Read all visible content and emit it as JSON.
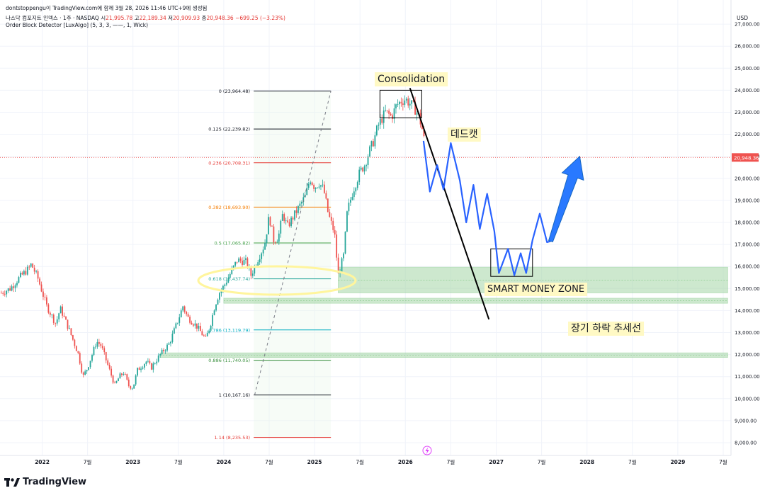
{
  "header": {
    "title": "dontstoppengu이 TradingView.com에 함께 3월 28, 2026 11:46 UTC+9에 생성됨",
    "symbol": "나스닥 컴포지트 인덱스 · 1주 · NASDAQ",
    "open_label": "시",
    "open": "21,995.78",
    "high_label": "고",
    "high": "22,189.34",
    "low_label": "저",
    "low": "20,909.93",
    "close_label": "종",
    "close": "20,948.36",
    "change": "−699.25 (−3.23%)",
    "indicator": "Order Block Detector [LuxAlgo] (5, 3, 3, ——, 1, Wick)"
  },
  "currency": "USD",
  "current_price": "20,948.36",
  "brand": "TradingView",
  "annotations": {
    "consolidation": "Consolidation",
    "dead_cat": "데드캣",
    "smart_money": "SMART MONEY ZONE",
    "trendline": "장기 하락 추세선"
  },
  "chart_data": {
    "type": "candlestick",
    "title": "",
    "y_axis": {
      "min": 7800,
      "max": 27200,
      "ticks": [
        8000,
        9000,
        10000,
        11000,
        12000,
        13000,
        14000,
        15000,
        16000,
        17000,
        18000,
        19000,
        20000,
        21000,
        22000,
        23000,
        24000,
        25000,
        26000,
        27000
      ],
      "tick_labels": [
        "8,000.00",
        "9,000.00",
        "10,000.00",
        "11,000.00",
        "12,000.00",
        "13,000.00",
        "14,000.00",
        "15,000.00",
        "16,000.00",
        "17,000.00",
        "18,000.00",
        "19,000.00",
        "20,000.00",
        "21,000.00",
        "22,000.00",
        "23,000.00",
        "24,000.00",
        "25,000.00",
        "26,000.00",
        "27,000.00"
      ]
    },
    "x_axis": {
      "min": 2021.55,
      "max": 2029.55,
      "ticks": [
        {
          "t": 2022.0,
          "label": "2022",
          "bold": true
        },
        {
          "t": 2022.5,
          "label": "7월",
          "bold": false
        },
        {
          "t": 2023.0,
          "label": "2023",
          "bold": true
        },
        {
          "t": 2023.5,
          "label": "7월",
          "bold": false
        },
        {
          "t": 2024.0,
          "label": "2024",
          "bold": true
        },
        {
          "t": 2024.5,
          "label": "7월",
          "bold": false
        },
        {
          "t": 2025.0,
          "label": "2025",
          "bold": true
        },
        {
          "t": 2025.5,
          "label": "7월",
          "bold": false
        },
        {
          "t": 2026.0,
          "label": "2026",
          "bold": true
        },
        {
          "t": 2026.5,
          "label": "7월",
          "bold": false
        },
        {
          "t": 2027.0,
          "label": "2027",
          "bold": true
        },
        {
          "t": 2027.5,
          "label": "7월",
          "bold": false
        },
        {
          "t": 2028.0,
          "label": "2028",
          "bold": true
        },
        {
          "t": 2028.5,
          "label": "7월",
          "bold": false
        },
        {
          "t": 2029.0,
          "label": "2029",
          "bold": true
        },
        {
          "t": 2029.5,
          "label": "7월",
          "bold": false
        }
      ]
    },
    "price_path": [
      [
        2021.55,
        14800
      ],
      [
        2021.65,
        15000
      ],
      [
        2021.75,
        15500
      ],
      [
        2021.85,
        15900
      ],
      [
        2021.88,
        16100
      ],
      [
        2021.95,
        15500
      ],
      [
        2022.05,
        14200
      ],
      [
        2022.15,
        13400
      ],
      [
        2022.2,
        14100
      ],
      [
        2022.3,
        13100
      ],
      [
        2022.4,
        12000
      ],
      [
        2022.45,
        11000
      ],
      [
        2022.5,
        11400
      ],
      [
        2022.6,
        12600
      ],
      [
        2022.65,
        12400
      ],
      [
        2022.7,
        11800
      ],
      [
        2022.75,
        11200
      ],
      [
        2022.8,
        10600
      ],
      [
        2022.85,
        11000
      ],
      [
        2022.9,
        11200
      ],
      [
        2022.95,
        10600
      ],
      [
        2023.0,
        10500
      ],
      [
        2023.05,
        11300
      ],
      [
        2023.1,
        11500
      ],
      [
        2023.15,
        11700
      ],
      [
        2023.2,
        11400
      ],
      [
        2023.3,
        12000
      ],
      [
        2023.4,
        12500
      ],
      [
        2023.5,
        13600
      ],
      [
        2023.55,
        14200
      ],
      [
        2023.6,
        13700
      ],
      [
        2023.7,
        13300
      ],
      [
        2023.8,
        12700
      ],
      [
        2023.85,
        13300
      ],
      [
        2023.9,
        14200
      ],
      [
        2023.95,
        14800
      ],
      [
        2024.0,
        15100
      ],
      [
        2024.1,
        15900
      ],
      [
        2024.15,
        16300
      ],
      [
        2024.25,
        16200
      ],
      [
        2024.3,
        15600
      ],
      [
        2024.35,
        16100
      ],
      [
        2024.45,
        17000
      ],
      [
        2024.5,
        18300
      ],
      [
        2024.55,
        17200
      ],
      [
        2024.6,
        17300
      ],
      [
        2024.65,
        18400
      ],
      [
        2024.7,
        17800
      ],
      [
        2024.8,
        18500
      ],
      [
        2024.9,
        19200
      ],
      [
        2024.95,
        20000
      ],
      [
        2025.0,
        19600
      ],
      [
        2025.05,
        19800
      ],
      [
        2025.1,
        19500
      ],
      [
        2025.15,
        18400
      ],
      [
        2025.22,
        17500
      ],
      [
        2025.26,
        15600
      ],
      [
        2025.32,
        16500
      ],
      [
        2025.36,
        18500
      ],
      [
        2025.42,
        19400
      ],
      [
        2025.5,
        20300
      ],
      [
        2025.55,
        20600
      ],
      [
        2025.6,
        21200
      ],
      [
        2025.65,
        21700
      ],
      [
        2025.7,
        22400
      ],
      [
        2025.78,
        23000
      ],
      [
        2025.85,
        22800
      ],
      [
        2025.9,
        23300
      ],
      [
        2025.95,
        23500
      ],
      [
        2026.0,
        23600
      ],
      [
        2026.05,
        23400
      ],
      [
        2026.1,
        23200
      ],
      [
        2026.15,
        22800
      ],
      [
        2026.2,
        21995.78
      ],
      [
        2026.22,
        20948.36
      ]
    ],
    "fibonacci": [
      {
        "level": "0",
        "price": 23964.48,
        "label": "0 (23,964.48)",
        "color": "#131722"
      },
      {
        "level": "0.125",
        "price": 22239.82,
        "label": "0.125 (22,239.82)",
        "color": "#131722"
      },
      {
        "level": "0.236",
        "price": 20708.31,
        "label": "0.236 (20,708.31)",
        "color": "#e53935"
      },
      {
        "level": "0.382",
        "price": 18693.9,
        "label": "0.382 (18,693.90)",
        "color": "#f57c00"
      },
      {
        "level": "0.5",
        "price": 17065.82,
        "label": "0.5 (17,065.82)",
        "color": "#43a047"
      },
      {
        "level": "0.618",
        "price": 15437.74,
        "label": "0.618 (15,437.74)",
        "color": "#26a69a"
      },
      {
        "level": "0.786",
        "price": 13119.79,
        "label": "0.786 (13,119.79)",
        "color": "#00acc1"
      },
      {
        "level": "0.886",
        "price": 11740.05,
        "label": "0.886 (11,740.05)",
        "color": "#388e3c"
      },
      {
        "level": "1",
        "price": 10167.16,
        "label": "1 (10,167.16)",
        "color": "#131722"
      },
      {
        "level": "1.14",
        "price": 8235.53,
        "label": "1.14 (8,235.53)",
        "color": "#e53935"
      }
    ],
    "fib_range": {
      "t_start": 2024.33,
      "t_end": 2025.18,
      "label_t": 2024.29
    },
    "order_blocks": [
      {
        "t_start": 2025.26,
        "t_end": 2029.55,
        "top": 15970,
        "bottom": 14800
      },
      {
        "t_start": 2024.0,
        "t_end": 2029.55,
        "top": 14560,
        "bottom": 14330
      },
      {
        "t_start": 2023.3,
        "t_end": 2029.55,
        "top": 12080,
        "bottom": 11870
      }
    ],
    "projection": [
      [
        2026.2,
        21700
      ],
      [
        2026.27,
        19400
      ],
      [
        2026.35,
        20600
      ],
      [
        2026.42,
        19500
      ],
      [
        2026.5,
        21600
      ],
      [
        2026.6,
        19900
      ],
      [
        2026.67,
        18000
      ],
      [
        2026.75,
        19700
      ],
      [
        2026.82,
        17700
      ],
      [
        2026.9,
        19300
      ],
      [
        2026.98,
        17600
      ],
      [
        2027.03,
        15700
      ],
      [
        2027.13,
        16800
      ],
      [
        2027.2,
        15600
      ],
      [
        2027.27,
        16600
      ],
      [
        2027.33,
        15700
      ],
      [
        2027.4,
        17200
      ],
      [
        2027.48,
        18400
      ],
      [
        2027.56,
        17100
      ],
      [
        2027.6,
        17150
      ]
    ],
    "projection_arrow": [
      [
        2027.6,
        17150
      ],
      [
        2027.92,
        21000
      ]
    ],
    "trendline": [
      [
        2026.05,
        24100
      ],
      [
        2026.92,
        13600
      ]
    ],
    "fib_dashed": [
      [
        2024.34,
        10167.16
      ],
      [
        2025.18,
        23964.48
      ]
    ]
  }
}
